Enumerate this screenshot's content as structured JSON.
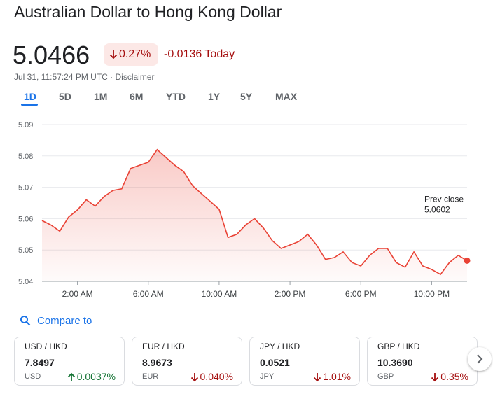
{
  "header": {
    "title": "Australian Dollar to Hong Kong Dollar",
    "price": "5.0466",
    "change_pct": "0.27%",
    "change": "-0.0136 Today",
    "timestamp": "Jul 31, 11:57:24 PM UTC · Disclaimer"
  },
  "ranges": [
    "1D",
    "5D",
    "1M",
    "6M",
    "YTD",
    "1Y",
    "5Y",
    "MAX"
  ],
  "compare_label": "Compare to",
  "cards": [
    {
      "pair": "USD / HKD",
      "price": "7.8497",
      "symbol": "USD",
      "change": "0.0037%",
      "direction": "up",
      "color": "#137333"
    },
    {
      "pair": "EUR / HKD",
      "price": "8.9673",
      "symbol": "EUR",
      "change": "0.040%",
      "direction": "down",
      "color": "#a50e0e"
    },
    {
      "pair": "JPY / HKD",
      "price": "0.0521",
      "symbol": "JPY",
      "change": "1.01%",
      "direction": "down",
      "color": "#a50e0e"
    },
    {
      "pair": "GBP / HKD",
      "price": "10.3690",
      "symbol": "GBP",
      "change": "0.35%",
      "direction": "down",
      "color": "#a50e0e"
    }
  ],
  "chart_data": {
    "type": "line",
    "color": "#e94235",
    "x": [
      0,
      0.5,
      1,
      1.5,
      2,
      2.5,
      3,
      3.5,
      4,
      4.5,
      5,
      5.5,
      6,
      6.5,
      7,
      7.5,
      8,
      8.5,
      9,
      9.5,
      10,
      10.5,
      11,
      11.5,
      12,
      12.5,
      13,
      13.5,
      14,
      14.5,
      15,
      15.5,
      16,
      16.5,
      17,
      17.5,
      18,
      18.5,
      19,
      19.5,
      20,
      20.5,
      21,
      21.5,
      22,
      22.5,
      23,
      23.5,
      24
    ],
    "values": [
      5.0594,
      5.058,
      5.056,
      5.0605,
      5.0628,
      5.066,
      5.064,
      5.067,
      5.069,
      5.0695,
      5.076,
      5.077,
      5.078,
      5.082,
      5.0795,
      5.077,
      5.075,
      5.0705,
      5.068,
      5.0655,
      5.063,
      5.054,
      5.055,
      5.058,
      5.06,
      5.057,
      5.053,
      5.0505,
      5.0516,
      5.0527,
      5.055,
      5.0516,
      5.047,
      5.0476,
      5.0494,
      5.046,
      5.0449,
      5.0483,
      5.0505,
      5.0505,
      5.046,
      5.0445,
      5.0494,
      5.0449,
      5.0438,
      5.0422,
      5.046,
      5.0483,
      5.0466
    ],
    "xlim": [
      0,
      24
    ],
    "ylim": [
      5.04,
      5.09
    ],
    "xticks": [
      {
        "value": 2,
        "label": "2:00 AM"
      },
      {
        "value": 6,
        "label": "6:00 AM"
      },
      {
        "value": 10,
        "label": "10:00 AM"
      },
      {
        "value": 14,
        "label": "2:00 PM"
      },
      {
        "value": 18,
        "label": "6:00 PM"
      },
      {
        "value": 22,
        "label": "10:00 PM"
      }
    ],
    "yticks": [
      5.04,
      5.05,
      5.06,
      5.07,
      5.08,
      5.09
    ],
    "grid": true,
    "prev_close": {
      "label": "Prev close",
      "value": 5.0602
    }
  }
}
